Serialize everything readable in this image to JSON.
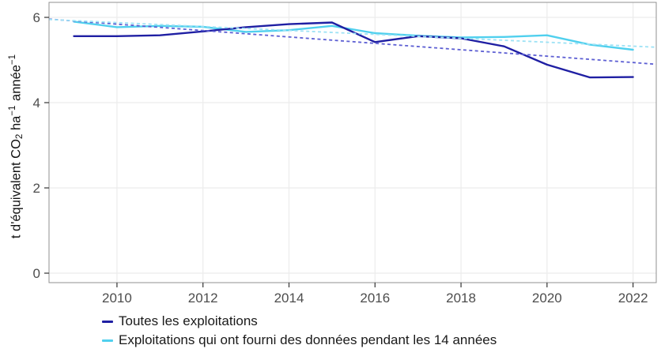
{
  "figure": {
    "y_axis_title": {
      "pre": "t d'équivalent CO",
      "sub": "2",
      "mid1": " ha",
      "sup1": "−1",
      "mid2": " année",
      "sup2": "−1"
    }
  },
  "chart_data": {
    "type": "line",
    "title": "",
    "xlabel": "",
    "ylabel": "t d'équivalent CO2 ha−1 année−1",
    "x": [
      2009,
      2010,
      2011,
      2012,
      2013,
      2014,
      2015,
      2016,
      2017,
      2018,
      2019,
      2020,
      2021,
      2022
    ],
    "series": [
      {
        "id": "toutes-exploitations",
        "name": "Toutes les exploitations",
        "color": "#1f1fa3",
        "style": "solid",
        "z": 2,
        "values": [
          5.56,
          5.56,
          5.58,
          5.67,
          5.77,
          5.84,
          5.88,
          5.42,
          5.56,
          5.51,
          5.32,
          4.89,
          4.59,
          4.6
        ]
      },
      {
        "id": "exploitations-14-annees",
        "name": "Exploitations qui ont fourni des données pendant les 14 années",
        "color": "#50d0ee",
        "style": "solid",
        "z": 1,
        "values": [
          5.9,
          5.77,
          5.8,
          5.78,
          5.66,
          5.7,
          5.8,
          5.63,
          5.57,
          5.53,
          5.54,
          5.58,
          5.36,
          5.24
        ]
      },
      {
        "id": "trend-toutes-exploitations",
        "name": "",
        "color": "#5d5fd3",
        "style": "dashed",
        "z": 3,
        "x": [
          2008.42,
          2022.54
        ],
        "values": [
          5.96,
          4.9
        ]
      },
      {
        "id": "trend-exploitations-14-annees",
        "name": "",
        "color": "#9de2f5",
        "style": "dashed",
        "z": 4,
        "x": [
          2008.42,
          2022.54
        ],
        "values": [
          5.95,
          5.3
        ]
      }
    ],
    "x_ticks": [
      2010,
      2012,
      2014,
      2016,
      2018,
      2020,
      2022
    ],
    "y_ticks": [
      0,
      2,
      4,
      6
    ],
    "xlim": [
      2008.42,
      2022.54
    ],
    "ylim": [
      -0.222,
      6.352
    ],
    "grid": true,
    "legend_position": "bottom"
  },
  "legend": {
    "items": [
      {
        "label": "Toutes les exploitations",
        "color": "#1f1fa3"
      },
      {
        "label": "Exploitations qui ont fourni des données pendant les 14 années",
        "color": "#50d0ee"
      }
    ]
  },
  "colors": {
    "panel_border": "#919191",
    "gridline": "#ececec",
    "tick": "#333333",
    "tick_label": "#4d4d4d"
  }
}
